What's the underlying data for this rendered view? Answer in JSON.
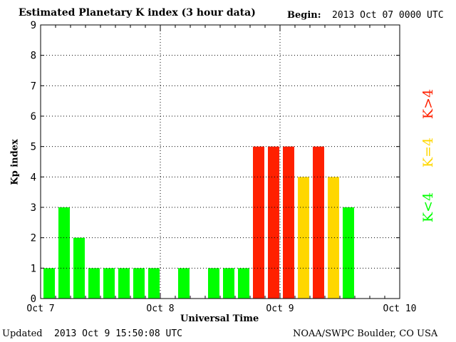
{
  "title": "Estimated Planetary K index (3 hour data)",
  "begin": {
    "label": "Begin:",
    "value": "2013 Oct 07 0000 UTC"
  },
  "footer": {
    "updated_label": "Updated",
    "updated_value": "2013 Oct  9 15:50:08 UTC",
    "source": "NOAA/SWPC Boulder, CO USA"
  },
  "legend": [
    {
      "label": "K<4",
      "color": "#00ff00"
    },
    {
      "label": "K=4",
      "color": "#ffd700"
    },
    {
      "label": "K>4",
      "color": "#ff2000"
    }
  ],
  "chart_data": {
    "type": "bar",
    "title": "Estimated Planetary K index (3 hour data)",
    "xlabel": "Universal Time",
    "ylabel": "Kp index",
    "ylim": [
      0,
      9
    ],
    "yticks": [
      0,
      1,
      2,
      3,
      4,
      5,
      6,
      7,
      8,
      9
    ],
    "xtick_labels": [
      "Oct 7",
      "Oct 8",
      "Oct 9",
      "Oct 10"
    ],
    "bins_per_day": 8,
    "grid": true,
    "colors": {
      "low": "#00ff00",
      "equal": "#ffd700",
      "high": "#ff2000"
    },
    "values": [
      1,
      3,
      2,
      1,
      1,
      1,
      1,
      1,
      0,
      1,
      0,
      1,
      1,
      1,
      5,
      5,
      5,
      4,
      5,
      4,
      3
    ]
  }
}
